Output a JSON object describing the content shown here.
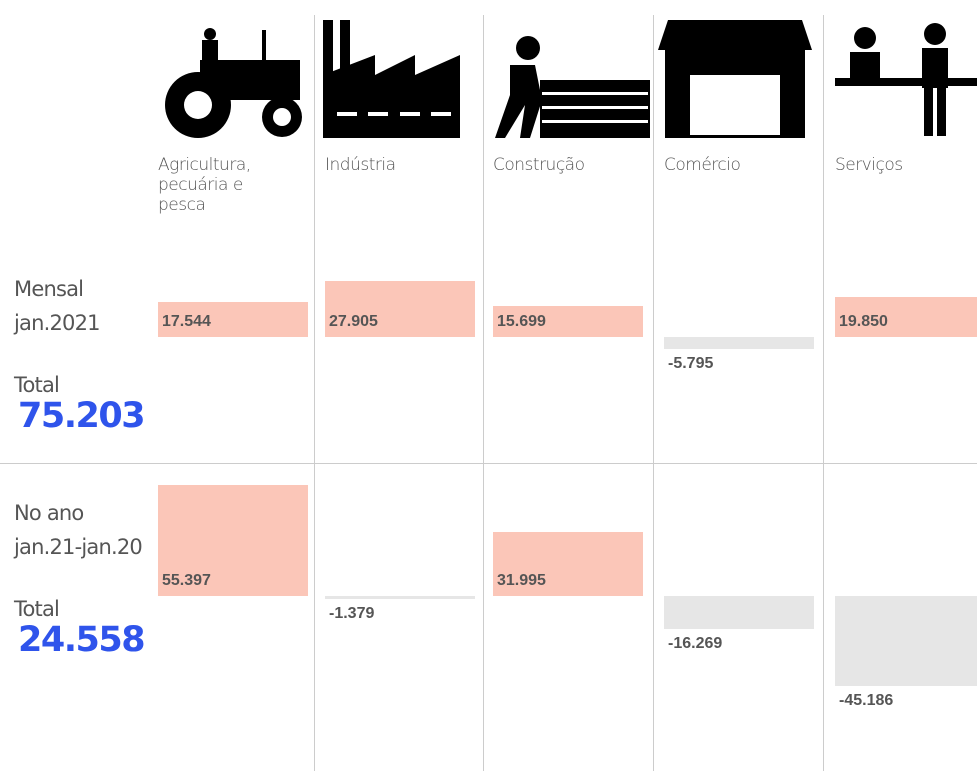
{
  "chart_data": {
    "type": "bar",
    "categories": [
      "Agricultura, pecuária e pesca",
      "Indústria",
      "Construção",
      "Comércio",
      "Serviços"
    ],
    "rows": [
      {
        "label": [
          "Mensal",
          "jan.2021"
        ],
        "total_label": "Total",
        "total": 75203,
        "total_text": "75.203",
        "values": [
          17544,
          27905,
          15699,
          -5795,
          19850
        ],
        "value_labels": [
          "17.544",
          "27.905",
          "15.699",
          "-5.795",
          "19.850"
        ]
      },
      {
        "label": [
          "No ano",
          "jan.21-jan.20"
        ],
        "total_label": "Total",
        "total": 24558,
        "total_text": "24.558",
        "values": [
          55397,
          -1379,
          31995,
          -16269,
          -45186
        ],
        "value_labels": [
          "55.397",
          "-1.379",
          "31.995",
          "-16.269",
          "-45.186"
        ]
      }
    ],
    "positive_color": "#fbc6b8",
    "negative_color": "#e6e6e6",
    "total_color": "#2f54eb"
  }
}
